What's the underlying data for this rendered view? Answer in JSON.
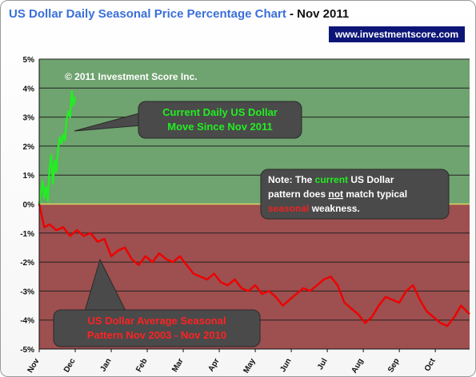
{
  "title": "US Dollar Daily Seasonal Price Percentage Chart",
  "title_separator": " - ",
  "title_date": "Nov 2011",
  "website": "www.investmentscore.com",
  "copyright": "© 2011 Investment Score Inc.",
  "colors": {
    "title": "#3a6fd8",
    "positive_zone": "#6fa36f",
    "negative_zone": "#9e4f4f",
    "current_line": "#22ee22",
    "seasonal_line": "#ee0000",
    "badge_bg": "#0d1677",
    "callout_bg": "#4a4a4a"
  },
  "callouts": {
    "current": [
      "Current Daily US Dollar",
      "Move Since Nov 2011"
    ],
    "note": {
      "line1": [
        {
          "t": "Note:  The ",
          "c": "#ffffff"
        },
        {
          "t": "current",
          "c": "#22ee22"
        },
        {
          "t": " US Dollar",
          "c": "#ffffff"
        }
      ],
      "line2": [
        {
          "t": "pattern does ",
          "c": "#ffffff"
        },
        {
          "t": "not",
          "c": "#ffffff",
          "u": true
        },
        {
          "t": " match typical",
          "c": "#ffffff"
        }
      ],
      "line3": [
        {
          "t": "seasonal",
          "c": "#ee2222"
        },
        {
          "t": " weakness.",
          "c": "#ffffff"
        }
      ]
    },
    "seasonal": [
      "US Dollar Average Seasonal",
      "Pattern Nov 2003 - Nov 2010"
    ]
  },
  "chart_data": {
    "type": "line",
    "ylim": [
      -5,
      5
    ],
    "xlim": [
      0,
      251
    ],
    "y_ticks": [
      "5%",
      "4%",
      "3%",
      "2%",
      "1%",
      "0%",
      "-1%",
      "-2%",
      "-3%",
      "-4%",
      "-5%"
    ],
    "x_ticks": [
      {
        "label": "Nov",
        "x": 0
      },
      {
        "label": "Dec",
        "x": 21
      },
      {
        "label": "Jan",
        "x": 42
      },
      {
        "label": "Feb",
        "x": 63
      },
      {
        "label": "Mar",
        "x": 84
      },
      {
        "label": "Apr",
        "x": 105
      },
      {
        "label": "May",
        "x": 126
      },
      {
        "label": "Jun",
        "x": 147
      },
      {
        "label": "Jul",
        "x": 168
      },
      {
        "label": "Aug",
        "x": 189
      },
      {
        "label": "Sep",
        "x": 210
      },
      {
        "label": "Oct",
        "x": 231
      }
    ],
    "series": [
      {
        "name": "Current Daily US Dollar Move Since Nov 2011",
        "color": "#22ee22",
        "x": [
          0,
          1,
          2,
          3,
          4,
          5,
          6,
          7,
          8,
          9,
          10,
          11,
          12,
          13,
          14,
          15,
          16,
          17,
          18,
          19,
          20,
          21
        ],
        "y": [
          0,
          0.4,
          0.8,
          0.2,
          0.6,
          0.1,
          1.2,
          1.7,
          0.7,
          1.5,
          1.1,
          1.9,
          2.3,
          2.1,
          2.4,
          2.2,
          2.9,
          3.2,
          3.0,
          3.9,
          3.4,
          3.7
        ]
      },
      {
        "name": "US Dollar Average Seasonal Pattern Nov 2003 - Nov 2010",
        "color": "#ee0000",
        "x": [
          0,
          3,
          6,
          10,
          14,
          18,
          22,
          26,
          30,
          34,
          38,
          42,
          46,
          50,
          54,
          58,
          62,
          66,
          70,
          74,
          78,
          82,
          86,
          90,
          94,
          98,
          102,
          106,
          110,
          114,
          118,
          122,
          126,
          130,
          134,
          138,
          142,
          146,
          150,
          154,
          158,
          162,
          166,
          170,
          174,
          178,
          182,
          186,
          190,
          194,
          198,
          202,
          206,
          210,
          214,
          218,
          222,
          226,
          230,
          234,
          238,
          242,
          246,
          251
        ],
        "y": [
          0,
          -0.8,
          -0.7,
          -0.9,
          -0.8,
          -1.1,
          -0.9,
          -1.1,
          -1.0,
          -1.3,
          -1.2,
          -1.8,
          -1.6,
          -1.5,
          -1.9,
          -2.1,
          -1.8,
          -2.0,
          -1.7,
          -1.9,
          -2.0,
          -1.8,
          -2.1,
          -2.4,
          -2.5,
          -2.6,
          -2.4,
          -2.7,
          -2.8,
          -2.6,
          -2.9,
          -3.0,
          -2.8,
          -3.1,
          -3.0,
          -3.2,
          -3.5,
          -3.3,
          -3.1,
          -2.9,
          -3.0,
          -2.8,
          -2.6,
          -2.5,
          -2.8,
          -3.4,
          -3.6,
          -3.8,
          -4.1,
          -3.9,
          -3.5,
          -3.2,
          -3.3,
          -3.4,
          -3.0,
          -2.8,
          -3.3,
          -3.7,
          -3.9,
          -4.1,
          -4.2,
          -3.9,
          -3.5,
          -3.8
        ]
      }
    ]
  }
}
